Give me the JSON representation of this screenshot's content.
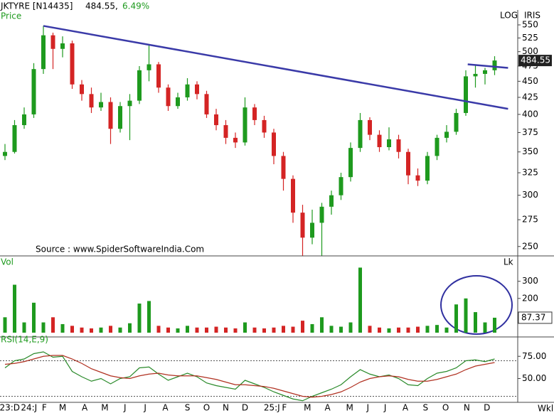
{
  "chart_data": [
    {
      "type": "candlestick",
      "title": "JKTYRE [N14435]",
      "price_text": "484.55,",
      "change_text": "6.49%",
      "panel_label": "Price",
      "scale_label": "LOG",
      "source_label": "IRIS",
      "annotation": "Source : www.SpiderSoftwareIndia.Com",
      "log_scale": true,
      "up_color": "#1e9a1e",
      "down_color": "#d42424",
      "open": [
        345,
        350,
        385,
        400,
        470,
        530,
        505,
        515,
        445,
        430,
        410,
        418,
        380,
        412,
        420,
        468,
        478,
        440,
        412,
        425,
        445,
        430,
        400,
        385,
        368,
        362,
        410,
        392,
        375,
        345,
        318,
        282,
        258,
        272,
        288,
        300,
        320,
        355,
        392,
        372,
        356,
        366,
        350,
        322,
        316,
        345,
        368,
        376,
        402,
        458,
        462,
        468
      ],
      "high": [
        360,
        392,
        410,
        480,
        548,
        535,
        528,
        520,
        452,
        440,
        432,
        425,
        418,
        430,
        475,
        512,
        482,
        445,
        432,
        455,
        450,
        435,
        408,
        392,
        375,
        425,
        415,
        398,
        380,
        350,
        322,
        290,
        285,
        292,
        305,
        325,
        362,
        402,
        396,
        378,
        382,
        372,
        354,
        330,
        350,
        372,
        385,
        408,
        468,
        478,
        472,
        492
      ],
      "low": [
        340,
        348,
        380,
        395,
        462,
        470,
        490,
        438,
        420,
        402,
        405,
        360,
        375,
        365,
        415,
        450,
        432,
        405,
        408,
        420,
        422,
        395,
        378,
        360,
        355,
        358,
        385,
        368,
        335,
        305,
        272,
        242,
        252,
        242,
        280,
        295,
        315,
        350,
        365,
        350,
        352,
        342,
        312,
        310,
        312,
        340,
        362,
        372,
        398,
        440,
        445,
        460
      ],
      "close": [
        350,
        385,
        400,
        470,
        530,
        505,
        515,
        445,
        430,
        410,
        418,
        380,
        412,
        420,
        468,
        478,
        440,
        412,
        425,
        445,
        430,
        400,
        385,
        368,
        362,
        410,
        392,
        375,
        345,
        318,
        282,
        258,
        272,
        288,
        300,
        320,
        355,
        392,
        372,
        356,
        366,
        350,
        322,
        316,
        345,
        368,
        376,
        402,
        458,
        462,
        468,
        484.55
      ],
      "ylim": [
        243,
        557
      ],
      "yticks": [
        250,
        275,
        300,
        325,
        350,
        375,
        400,
        425,
        450,
        475,
        500,
        525,
        550
      ],
      "trendlines": [
        {
          "color": "#3a3aa8",
          "points": [
            [
              4,
              548
            ],
            [
              52.4,
              408
            ]
          ]
        },
        {
          "color": "#3a3aa8",
          "points": [
            [
              48.2,
              478
            ],
            [
              52.4,
              472
            ]
          ]
        }
      ]
    },
    {
      "type": "bar",
      "panel_label": "Vol",
      "unit_label": "Lk",
      "values": [
        90,
        280,
        60,
        175,
        60,
        90,
        50,
        40,
        30,
        25,
        30,
        40,
        30,
        55,
        170,
        185,
        40,
        30,
        25,
        40,
        30,
        30,
        35,
        30,
        25,
        60,
        30,
        25,
        30,
        40,
        35,
        70,
        50,
        90,
        40,
        35,
        60,
        380,
        40,
        30,
        25,
        30,
        30,
        35,
        40,
        45,
        30,
        165,
        200,
        120,
        60,
        87.37
      ],
      "ylim": [
        0,
        440
      ],
      "yticks": [
        100,
        200,
        300
      ]
    },
    {
      "type": "line",
      "panel_label": "RSI(14,E,9)",
      "series": [
        {
          "color": "#2a8a2a",
          "values": [
            62,
            70,
            72,
            78,
            80,
            74,
            75,
            58,
            52,
            47,
            50,
            44,
            50,
            52,
            62,
            63,
            55,
            48,
            52,
            56,
            52,
            45,
            42,
            40,
            38,
            48,
            44,
            40,
            35,
            31,
            27,
            25,
            30,
            34,
            38,
            43,
            52,
            60,
            55,
            52,
            54,
            50,
            43,
            42,
            50,
            56,
            58,
            62,
            70,
            71,
            69,
            72
          ]
        },
        {
          "color": "#b03020",
          "values": [
            66,
            67,
            69,
            72,
            75,
            76,
            76,
            72,
            67,
            61,
            57,
            53,
            51,
            50,
            53,
            55,
            56,
            54,
            53,
            53,
            53,
            51,
            49,
            46,
            43,
            43,
            42,
            41,
            39,
            36,
            33,
            30,
            29,
            30,
            32,
            35,
            40,
            46,
            50,
            52,
            53,
            52,
            49,
            47,
            47,
            49,
            52,
            55,
            60,
            64,
            66,
            68
          ]
        }
      ],
      "ylim": [
        24,
        92
      ],
      "yticks": [
        {
          "value": 75,
          "label": "75.00"
        },
        {
          "value": 50,
          "label": "50.00"
        }
      ],
      "levels": [
        70,
        30
      ],
      "period_label": "Wkl",
      "xticks": [
        {
          "value": 0.5,
          "label": "23:D"
        },
        {
          "value": 2.5,
          "label": "24:J"
        },
        {
          "value": 4.1,
          "label": "F"
        },
        {
          "value": 6,
          "label": "M"
        },
        {
          "value": 8.3,
          "label": "A"
        },
        {
          "value": 10.4,
          "label": "M"
        },
        {
          "value": 12.5,
          "label": "J"
        },
        {
          "value": 14.6,
          "label": "J"
        },
        {
          "value": 16.7,
          "label": "A"
        },
        {
          "value": 19,
          "label": "S"
        },
        {
          "value": 21,
          "label": "O"
        },
        {
          "value": 23,
          "label": "N"
        },
        {
          "value": 25,
          "label": "D"
        },
        {
          "value": 27.8,
          "label": "25:J"
        },
        {
          "value": 29.1,
          "label": "F"
        },
        {
          "value": 31.5,
          "label": "M"
        },
        {
          "value": 33.6,
          "label": "A"
        },
        {
          "value": 35.9,
          "label": "M"
        },
        {
          "value": 37.8,
          "label": "J"
        },
        {
          "value": 39.6,
          "label": "J"
        },
        {
          "value": 41.7,
          "label": "A"
        },
        {
          "value": 43.8,
          "label": "S"
        },
        {
          "value": 45.9,
          "label": "O"
        },
        {
          "value": 48.1,
          "label": "N"
        },
        {
          "value": 50.2,
          "label": "D"
        }
      ]
    }
  ]
}
